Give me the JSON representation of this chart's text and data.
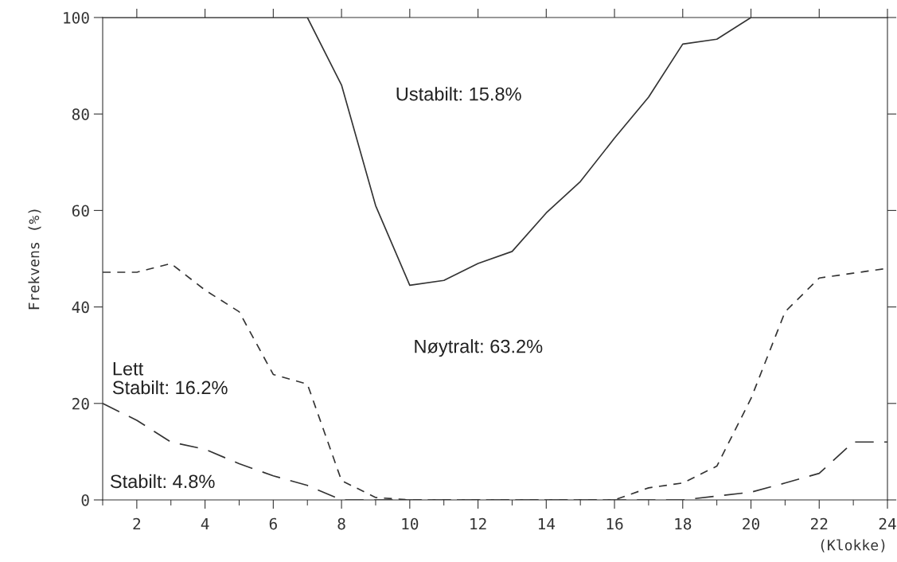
{
  "chart_data": {
    "type": "line",
    "ylabel": "Frekvens (%)",
    "xlabel": "(Klokke)",
    "x": [
      1,
      2,
      3,
      4,
      5,
      6,
      7,
      8,
      9,
      10,
      11,
      12,
      13,
      14,
      15,
      16,
      17,
      18,
      19,
      20,
      21,
      22,
      23,
      24
    ],
    "series": [
      {
        "color": "#333333",
        "line_style": "solid",
        "values": [
          100,
          100,
          100,
          100,
          100,
          100,
          100,
          86,
          61,
          44.5,
          45.5,
          49,
          51.5,
          59.5,
          66,
          75,
          83.5,
          94.5,
          95.5,
          100,
          100,
          100,
          100,
          100
        ]
      },
      {
        "color": "#333333",
        "line_style": "dashed",
        "values": [
          47.2,
          47.2,
          49,
          43.5,
          39,
          26,
          24,
          4,
          0.5,
          0,
          0,
          0,
          0,
          0,
          0,
          0,
          2.5,
          3.5,
          7,
          21,
          39,
          46,
          47,
          48
        ]
      },
      {
        "color": "#333333",
        "line_style": "longdash",
        "values": [
          20,
          16.5,
          12,
          10.5,
          7.5,
          5,
          3,
          0,
          0,
          0,
          0,
          0,
          0,
          0,
          0,
          0,
          0,
          0,
          0.8,
          1.6,
          3.5,
          5.5,
          12,
          12
        ]
      }
    ],
    "xlim": [
      1,
      24
    ],
    "xticks": [
      {
        "value": 1,
        "label": null
      },
      2,
      {
        "value": 3,
        "label": null
      },
      4,
      {
        "value": 5,
        "label": null
      },
      6,
      {
        "value": 7,
        "label": null
      },
      8,
      {
        "value": 9,
        "label": null
      },
      10,
      {
        "value": 11,
        "label": null
      },
      12,
      {
        "value": 13,
        "label": null
      },
      14,
      {
        "value": 15,
        "label": null
      },
      16,
      {
        "value": 17,
        "label": null
      },
      18,
      {
        "value": 19,
        "label": null
      },
      20,
      {
        "value": 21,
        "label": null
      },
      22,
      {
        "value": 23,
        "label": null
      },
      24
    ],
    "ylim": [
      0,
      100
    ],
    "yticks": [
      0,
      20,
      40,
      60,
      80,
      100
    ],
    "grid": false,
    "legend": false,
    "marker": "none",
    "annotations": [
      "Ustabilt: 15.8%",
      "Nøytralt: 63.2%",
      "Lett\nStabilt: 16.2%",
      "Stabilt: 4.8%"
    ]
  }
}
